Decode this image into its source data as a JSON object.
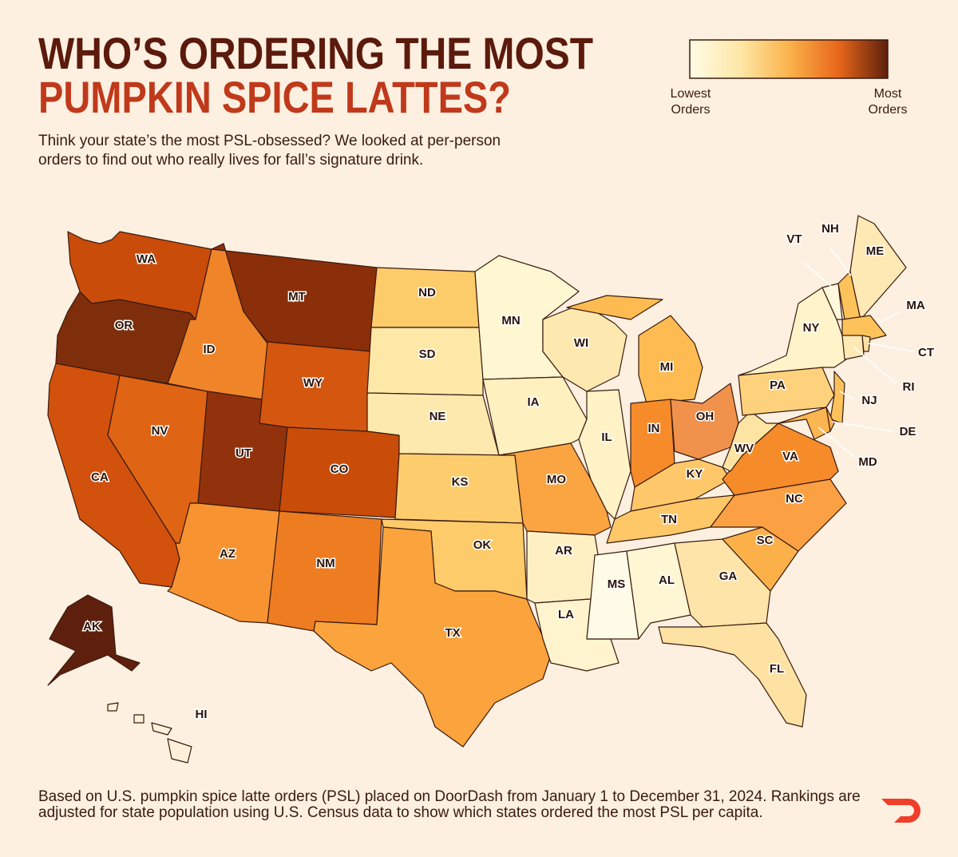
{
  "header": {
    "title_line1": "WHO’S ORDERING THE MOST",
    "title_line2": "PUMPKIN SPICE LATTES?",
    "subtitle_line1": "Think your state’s the most PSL-obsessed? We looked at per-person",
    "subtitle_line2": "orders to find out who really lives for fall’s signature drink."
  },
  "legend": {
    "colors": [
      "#fffbe6",
      "#fde8a8",
      "#fbb34c",
      "#e8671a",
      "#5e200c"
    ],
    "low_line1": "Lowest",
    "low_line2": "Orders",
    "high_line1": "Most",
    "high_line2": "Orders"
  },
  "map": {
    "states": [
      {
        "label": "WA",
        "color": "#c94c0b"
      },
      {
        "label": "OR",
        "color": "#7f2e0c"
      },
      {
        "label": "CA",
        "color": "#d2510d"
      },
      {
        "label": "NV",
        "color": "#df6414"
      },
      {
        "label": "ID",
        "color": "#f08428"
      },
      {
        "label": "MT",
        "color": "#8b2e0a"
      },
      {
        "label": "WY",
        "color": "#d4560f"
      },
      {
        "label": "UT",
        "color": "#92320c"
      },
      {
        "label": "CO",
        "color": "#c94c08"
      },
      {
        "label": "AZ",
        "color": "#f79331"
      },
      {
        "label": "NM",
        "color": "#ee7d22"
      },
      {
        "label": "ND",
        "color": "#fccb6a"
      },
      {
        "label": "SD",
        "color": "#fde8a8"
      },
      {
        "label": "NE",
        "color": "#fde9ad"
      },
      {
        "label": "KS",
        "color": "#fdcd6d"
      },
      {
        "label": "OK",
        "color": "#fdcb6a"
      },
      {
        "label": "TX",
        "color": "#fba33c"
      },
      {
        "label": "MN",
        "color": "#fff7d2"
      },
      {
        "label": "IA",
        "color": "#fff0c0"
      },
      {
        "label": "MO",
        "color": "#faa442"
      },
      {
        "label": "AR",
        "color": "#fff0c4"
      },
      {
        "label": "LA",
        "color": "#fff4cd"
      },
      {
        "label": "WI",
        "color": "#fde8b0"
      },
      {
        "label": "IL",
        "color": "#fff2c6"
      },
      {
        "label": "MI",
        "color": "#fdbb52"
      },
      {
        "label": "IN",
        "color": "#f68b2a"
      },
      {
        "label": "OH",
        "color": "#f0924c"
      },
      {
        "label": "KY",
        "color": "#fec86a"
      },
      {
        "label": "TN",
        "color": "#fec869"
      },
      {
        "label": "MS",
        "color": "#fffbe6"
      },
      {
        "label": "AL",
        "color": "#fff6d4"
      },
      {
        "label": "GA",
        "color": "#fee4a8"
      },
      {
        "label": "FL",
        "color": "#fee2a3"
      },
      {
        "label": "SC",
        "color": "#fcb04a"
      },
      {
        "label": "NC",
        "color": "#fba043"
      },
      {
        "label": "VA",
        "color": "#f68b2a"
      },
      {
        "label": "WV",
        "color": "#fde4a3"
      },
      {
        "label": "PA",
        "color": "#fed27d"
      },
      {
        "label": "NY",
        "color": "#fff3c9"
      },
      {
        "label": "VT",
        "color": "#fff8dc"
      },
      {
        "label": "NH",
        "color": "#fdc35a"
      },
      {
        "label": "ME",
        "color": "#fee9b5"
      },
      {
        "label": "MA",
        "color": "#fdc35a"
      },
      {
        "label": "CT",
        "color": "#fee9b5"
      },
      {
        "label": "RI",
        "color": "#fee0a0"
      },
      {
        "label": "NJ",
        "color": "#fdc25c"
      },
      {
        "label": "DE",
        "color": "#fcb04a"
      },
      {
        "label": "MD",
        "color": "#fbb551"
      },
      {
        "label": "AK",
        "color": "#5e200c"
      },
      {
        "label": "HI",
        "color": "#fff0d9"
      }
    ]
  },
  "footer": {
    "line1": "Based on U.S. pumpkin spice latte orders (PSL) placed on DoorDash from January 1 to December 31, 2024. Rankings are",
    "line2": "adjusted for state population using U.S. Census data to show which states ordered the most  PSL per capita."
  }
}
